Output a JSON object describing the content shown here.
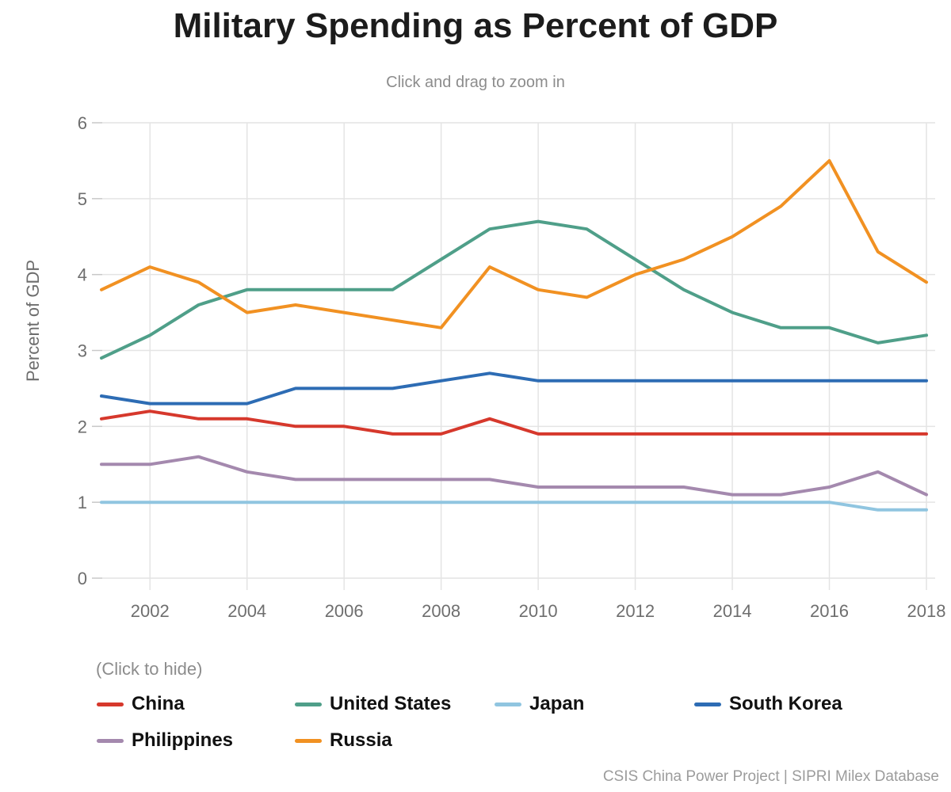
{
  "title": "Military Spending as Percent of GDP",
  "subtitle": "Click and drag to zoom in",
  "legend": {
    "hint": "(Click to hide)"
  },
  "footer": {
    "credit": "CSIS China Power Project | SIPRI Milex Database"
  },
  "chart_data": {
    "type": "line",
    "title": "Military Spending as Percent of GDP",
    "xlabel": "",
    "ylabel": "Percent of GDP",
    "ylim": [
      0,
      6
    ],
    "yticks": [
      0,
      1,
      2,
      3,
      4,
      5,
      6
    ],
    "xticks": [
      2002,
      2004,
      2006,
      2008,
      2010,
      2012,
      2014,
      2016,
      2018
    ],
    "grid": true,
    "legend_position": "bottom",
    "x": [
      2001,
      2002,
      2003,
      2004,
      2005,
      2006,
      2007,
      2008,
      2009,
      2010,
      2011,
      2012,
      2013,
      2014,
      2015,
      2016,
      2017,
      2018
    ],
    "series": [
      {
        "name": "China",
        "color": "#d6382c",
        "values": [
          2.1,
          2.2,
          2.1,
          2.1,
          2.0,
          2.0,
          1.9,
          1.9,
          2.1,
          1.9,
          1.9,
          1.9,
          1.9,
          1.9,
          1.9,
          1.9,
          1.9,
          1.9
        ]
      },
      {
        "name": "United States",
        "color": "#4f9f89",
        "values": [
          2.9,
          3.2,
          3.6,
          3.8,
          3.8,
          3.8,
          3.8,
          4.2,
          4.6,
          4.7,
          4.6,
          4.2,
          3.8,
          3.5,
          3.3,
          3.3,
          3.1,
          3.2
        ]
      },
      {
        "name": "Japan",
        "color": "#90c5e0",
        "values": [
          1.0,
          1.0,
          1.0,
          1.0,
          1.0,
          1.0,
          1.0,
          1.0,
          1.0,
          1.0,
          1.0,
          1.0,
          1.0,
          1.0,
          1.0,
          1.0,
          0.9,
          0.9
        ]
      },
      {
        "name": "South Korea",
        "color": "#2d6cb4",
        "values": [
          2.4,
          2.3,
          2.3,
          2.3,
          2.5,
          2.5,
          2.5,
          2.6,
          2.7,
          2.6,
          2.6,
          2.6,
          2.6,
          2.6,
          2.6,
          2.6,
          2.6,
          2.6
        ]
      },
      {
        "name": "Philippines",
        "color": "#a489ae",
        "values": [
          1.5,
          1.5,
          1.6,
          1.4,
          1.3,
          1.3,
          1.3,
          1.3,
          1.3,
          1.2,
          1.2,
          1.2,
          1.2,
          1.1,
          1.1,
          1.2,
          1.4,
          1.1
        ]
      },
      {
        "name": "Russia",
        "color": "#f19122",
        "values": [
          3.8,
          4.1,
          3.9,
          3.5,
          3.6,
          3.5,
          3.4,
          3.3,
          4.1,
          3.8,
          3.7,
          4.0,
          4.2,
          4.5,
          4.9,
          5.5,
          4.3,
          3.9
        ]
      }
    ],
    "colors": {
      "grid": "#e4e4e4",
      "tick_dash": "#c8c8c8",
      "tick_text": "#6e6e6e"
    }
  }
}
